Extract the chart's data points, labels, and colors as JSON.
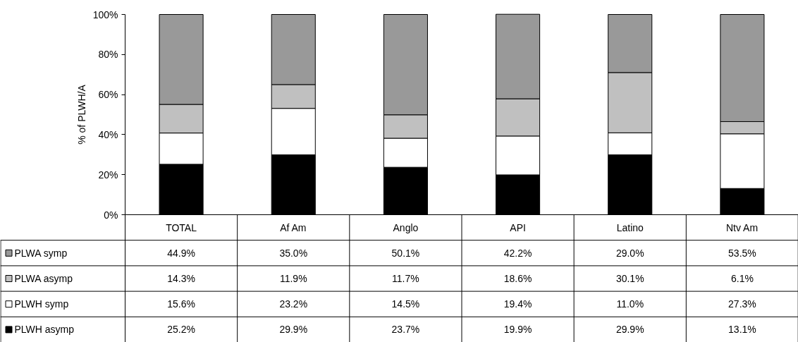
{
  "chart_data": {
    "type": "bar",
    "stacked": true,
    "ylabel": "% of PLWH/A",
    "categories": [
      "TOTAL",
      "Af Am",
      "Anglo",
      "API",
      "Latino",
      "Ntv Am"
    ],
    "ylim": [
      0,
      100
    ],
    "yticks": [
      {
        "value": 0,
        "label": "0%"
      },
      {
        "value": 20,
        "label": "20%"
      },
      {
        "value": 40,
        "label": "40%"
      },
      {
        "value": 60,
        "label": "60%"
      },
      {
        "value": 80,
        "label": "80%"
      },
      {
        "value": 100,
        "label": "100%"
      }
    ],
    "legend": "bottom",
    "series": [
      {
        "name": "PLWH asymp",
        "color": "#000000",
        "values": [
          25.2,
          29.9,
          23.7,
          19.9,
          29.9,
          13.1
        ],
        "value_labels": [
          "25.2%",
          "29.9%",
          "23.7%",
          "19.9%",
          "29.9%",
          "13.1%"
        ]
      },
      {
        "name": "PLWH symp",
        "color": "#ffffff",
        "values": [
          15.6,
          23.2,
          14.5,
          19.4,
          11.0,
          27.3
        ],
        "value_labels": [
          "15.6%",
          "23.2%",
          "14.5%",
          "19.4%",
          "11.0%",
          "27.3%"
        ]
      },
      {
        "name": "PLWA asymp",
        "color": "#c0c0c0",
        "values": [
          14.3,
          11.9,
          11.7,
          18.6,
          30.1,
          6.1
        ],
        "value_labels": [
          "14.3%",
          "11.9%",
          "11.7%",
          "18.6%",
          "30.1%",
          "6.1%"
        ]
      },
      {
        "name": "PLWA symp",
        "color": "#999999",
        "values": [
          44.9,
          35.0,
          50.1,
          42.2,
          29.0,
          53.5
        ],
        "value_labels": [
          "44.9%",
          "35.0%",
          "50.1%",
          "42.2%",
          "29.0%",
          "53.5%"
        ]
      }
    ]
  }
}
